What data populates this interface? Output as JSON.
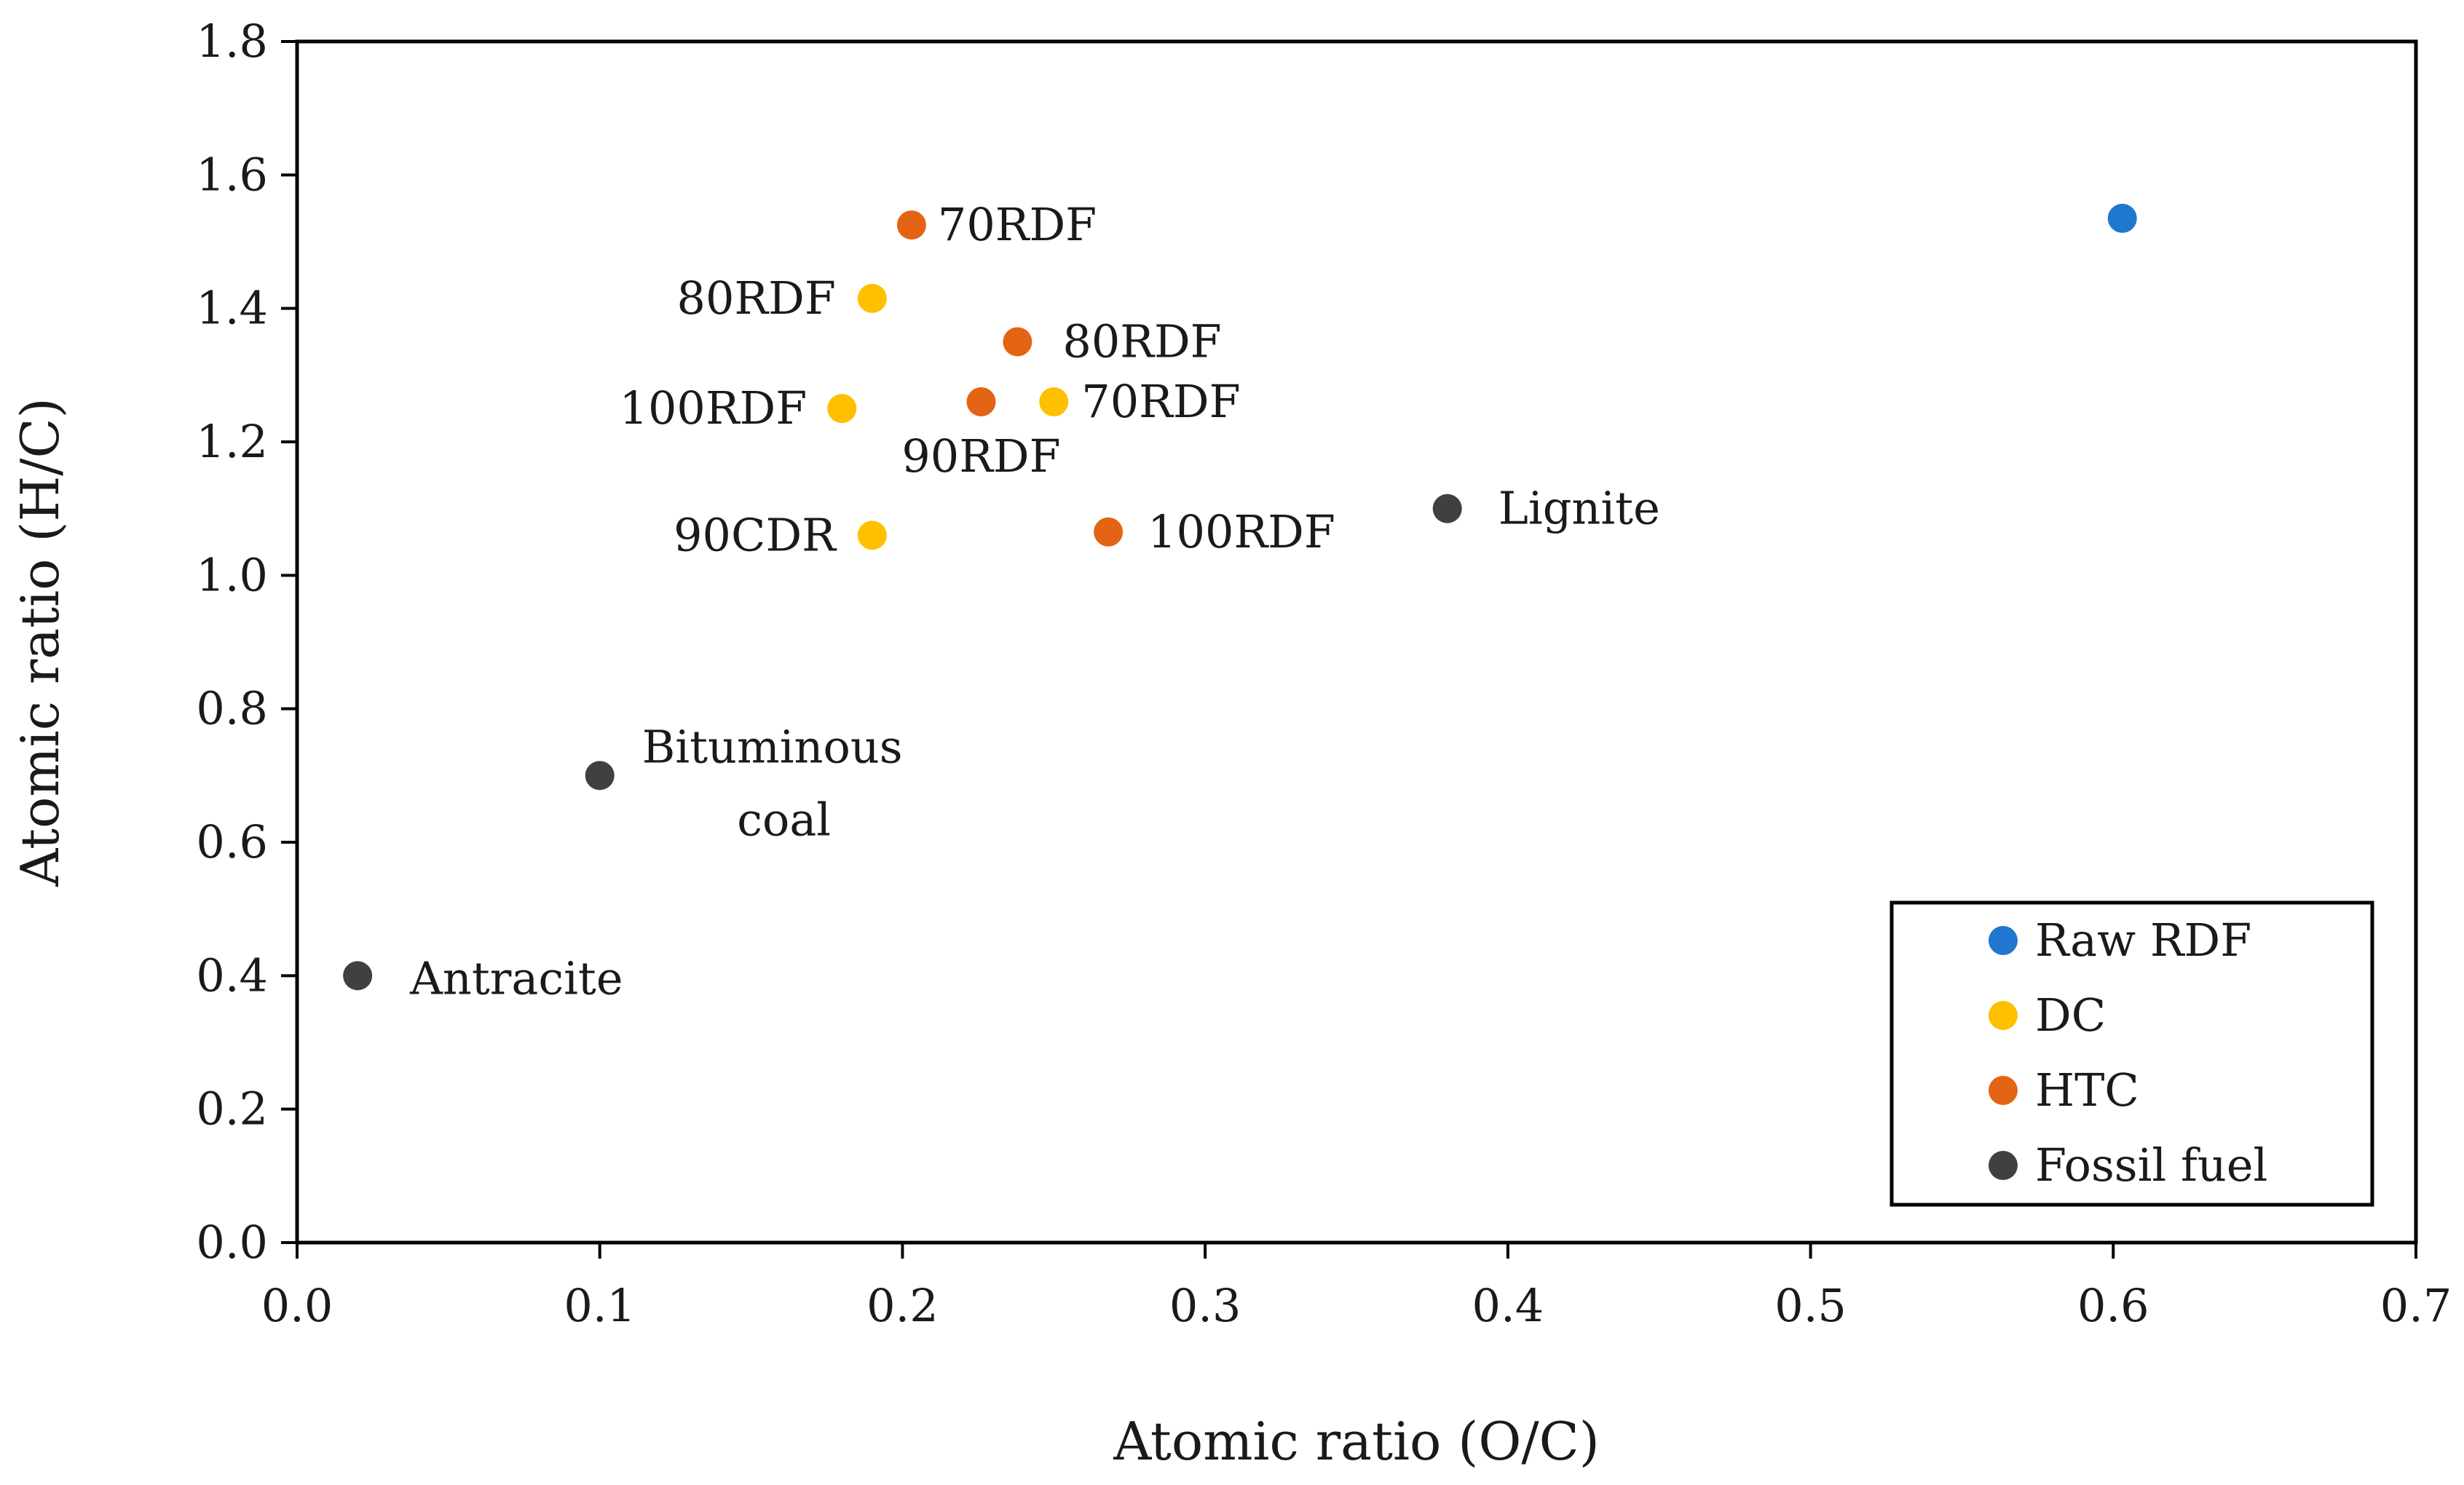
{
  "chart_data": {
    "type": "scatter",
    "title": "",
    "xlabel": "Atomic ratio (O/C)",
    "ylabel": "Atomic ratio (H/C)",
    "xlim": [
      0.0,
      0.7
    ],
    "ylim": [
      0.0,
      1.8
    ],
    "xticks": [
      "0.0",
      "0.1",
      "0.2",
      "0.3",
      "0.4",
      "0.5",
      "0.6",
      "0.7"
    ],
    "yticks": [
      "0.0",
      "0.2",
      "0.4",
      "0.6",
      "0.8",
      "1.0",
      "1.2",
      "1.4",
      "1.6",
      "1.8"
    ],
    "grid": false,
    "legend_position": "bottom-right",
    "series": [
      {
        "name": "Raw RDF",
        "color": "#1f77d0",
        "points": [
          {
            "x": 0.603,
            "y": 1.535,
            "label": ""
          }
        ]
      },
      {
        "name": "DC",
        "color": "#ffc000",
        "points": [
          {
            "x": 0.19,
            "y": 1.415,
            "label": "80RDF"
          },
          {
            "x": 0.18,
            "y": 1.25,
            "label": "100RDF"
          },
          {
            "x": 0.25,
            "y": 1.26,
            "label": "70RDF"
          },
          {
            "x": 0.19,
            "y": 1.06,
            "label": "90CDR"
          }
        ]
      },
      {
        "name": "HTC",
        "color": "#e36414",
        "points": [
          {
            "x": 0.203,
            "y": 1.525,
            "label": "70RDF"
          },
          {
            "x": 0.238,
            "y": 1.35,
            "label": "80RDF"
          },
          {
            "x": 0.226,
            "y": 1.26,
            "label": "90RDF"
          },
          {
            "x": 0.268,
            "y": 1.065,
            "label": "100RDF"
          }
        ]
      },
      {
        "name": "Fossil fuel",
        "color": "#404040",
        "points": [
          {
            "x": 0.38,
            "y": 1.1,
            "label": "Lignite"
          },
          {
            "x": 0.1,
            "y": 0.7,
            "label": "Bituminous coal"
          },
          {
            "x": 0.02,
            "y": 0.4,
            "label": "Antracite"
          }
        ]
      }
    ]
  }
}
